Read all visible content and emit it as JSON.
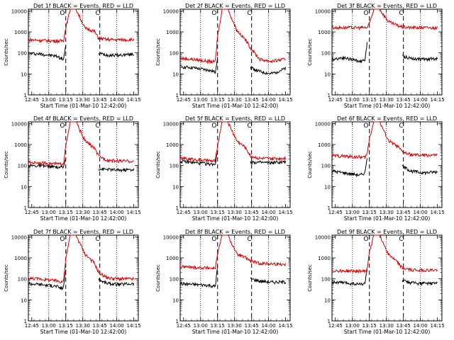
{
  "figure": {
    "xlabel": "Start Time (01-Mar-10 12:42:00)",
    "ylabel": "Counts/sec",
    "event_color": "#000000",
    "lld_color": "#d40000",
    "x_tick_labels": [
      "12:45",
      "13:00",
      "13:15",
      "13:30",
      "13:45",
      "14:00",
      "14:15"
    ],
    "y_tick_labels": [
      "1",
      "10",
      "100",
      "1000",
      "10000"
    ],
    "marker_labels": [
      "O",
      "C"
    ]
  },
  "chart_data": [
    {
      "type": "line",
      "title": "Det 1f BLACK = Events, RED = LLD",
      "ylim": [
        1,
        12000
      ],
      "yscale": "log",
      "x_minutes": [
        0,
        10,
        25,
        29,
        31,
        33,
        37,
        42,
        50,
        58,
        62,
        70,
        80,
        93
      ],
      "series": [
        {
          "name": "Events",
          "values": [
            95,
            90,
            70,
            55,
            50,
            200,
            null,
            null,
            null,
            null,
            95,
            80,
            78,
            88
          ]
        },
        {
          "name": "LLD",
          "values": [
            420,
            400,
            370,
            370,
            390,
            1500,
            12000,
            12000,
            1500,
            1100,
            500,
            430,
            420,
            430
          ]
        }
      ]
    },
    {
      "type": "line",
      "title": "Det 2f BLACK = Events, RED = LLD",
      "ylim": [
        1,
        12000
      ],
      "yscale": "log",
      "x_minutes": [
        0,
        10,
        25,
        29,
        31,
        33,
        37,
        42,
        50,
        58,
        62,
        70,
        80,
        93
      ],
      "series": [
        {
          "name": "Events",
          "values": [
            22,
            20,
            15,
            13,
            12,
            70,
            null,
            null,
            null,
            null,
            20,
            13,
            10,
            18
          ]
        },
        {
          "name": "LLD",
          "values": [
            55,
            50,
            40,
            38,
            40,
            600,
            12000,
            12000,
            1200,
            400,
            180,
            50,
            40,
            50
          ]
        }
      ]
    },
    {
      "type": "line",
      "title": "Det 3f BLACK = Events, RED = LLD",
      "ylim": [
        1,
        12000
      ],
      "yscale": "log",
      "x_minutes": [
        0,
        10,
        25,
        29,
        31,
        33,
        37,
        42,
        50,
        58,
        62,
        70,
        80,
        93
      ],
      "series": [
        {
          "name": "Events",
          "values": [
            50,
            60,
            40,
            45,
            280,
            null,
            null,
            null,
            null,
            null,
            70,
            55,
            50,
            55
          ]
        },
        {
          "name": "LLD",
          "values": [
            1600,
            1600,
            1600,
            1600,
            1600,
            2500,
            12000,
            12000,
            3000,
            2000,
            1700,
            1600,
            1600,
            1550
          ]
        }
      ]
    },
    {
      "type": "line",
      "title": "Det 4f BLACK = Events, RED = LLD",
      "ylim": [
        1,
        12000
      ],
      "yscale": "log",
      "x_minutes": [
        0,
        10,
        25,
        29,
        31,
        33,
        37,
        42,
        50,
        58,
        62,
        70,
        80,
        93
      ],
      "series": [
        {
          "name": "Events",
          "values": [
            100,
            95,
            85,
            80,
            85,
            250,
            null,
            null,
            null,
            null,
            70,
            65,
            60,
            65
          ]
        },
        {
          "name": "LLD",
          "values": [
            140,
            135,
            120,
            115,
            130,
            800,
            12000,
            12000,
            1500,
            700,
            280,
            180,
            165,
            160
          ]
        }
      ]
    },
    {
      "type": "line",
      "title": "Det 5f BLACK = Events, RED = LLD",
      "ylim": [
        1,
        12000
      ],
      "yscale": "log",
      "x_minutes": [
        0,
        10,
        25,
        29,
        31,
        33,
        37,
        42,
        50,
        58,
        62,
        70,
        80,
        93
      ],
      "series": [
        {
          "name": "Events",
          "values": [
            160,
            140,
            120,
            115,
            120,
            500,
            null,
            null,
            null,
            null,
            150,
            140,
            135,
            150
          ]
        },
        {
          "name": "LLD",
          "values": [
            220,
            200,
            170,
            160,
            170,
            900,
            12000,
            12000,
            1500,
            700,
            280,
            220,
            210,
            230
          ]
        }
      ]
    },
    {
      "type": "line",
      "title": "Det 6f BLACK = Events, RED = LLD",
      "ylim": [
        1,
        12000
      ],
      "yscale": "log",
      "x_minutes": [
        0,
        10,
        25,
        29,
        31,
        33,
        37,
        42,
        50,
        58,
        62,
        70,
        80,
        93
      ],
      "series": [
        {
          "name": "Events",
          "values": [
            55,
            45,
            35,
            45,
            250,
            null,
            null,
            null,
            null,
            null,
            90,
            55,
            45,
            50
          ]
        },
        {
          "name": "LLD",
          "values": [
            300,
            280,
            250,
            240,
            350,
            2000,
            12000,
            12000,
            1500,
            800,
            450,
            320,
            310,
            310
          ]
        }
      ]
    },
    {
      "type": "line",
      "title": "Det 7f BLACK = Events, RED = LLD",
      "ylim": [
        1,
        12000
      ],
      "yscale": "log",
      "x_minutes": [
        0,
        10,
        25,
        29,
        31,
        33,
        37,
        42,
        50,
        58,
        62,
        70,
        80,
        93
      ],
      "series": [
        {
          "name": "Events",
          "values": [
            60,
            55,
            45,
            35,
            40,
            300,
            null,
            null,
            null,
            null,
            90,
            60,
            55,
            60
          ]
        },
        {
          "name": "LLD",
          "values": [
            110,
            100,
            80,
            75,
            80,
            900,
            12000,
            12000,
            1500,
            600,
            200,
            110,
            100,
            100
          ]
        }
      ]
    },
    {
      "type": "line",
      "title": "Det 8f BLACK = Events, RED = LLD",
      "ylim": [
        1,
        12000
      ],
      "yscale": "log",
      "x_minutes": [
        0,
        10,
        25,
        29,
        31,
        33,
        37,
        42,
        50,
        58,
        62,
        70,
        80,
        93
      ],
      "series": [
        {
          "name": "Events",
          "values": [
            60,
            55,
            50,
            45,
            45,
            400,
            null,
            null,
            null,
            null,
            100,
            80,
            70,
            70
          ]
        },
        {
          "name": "LLD",
          "values": [
            380,
            360,
            330,
            320,
            330,
            1500,
            12000,
            12000,
            1500,
            1000,
            700,
            550,
            520,
            500
          ]
        }
      ]
    },
    {
      "type": "line",
      "title": "Det 9f BLACK = Events, RED = LLD",
      "ylim": [
        1,
        12000
      ],
      "yscale": "log",
      "x_minutes": [
        0,
        10,
        25,
        29,
        31,
        33,
        37,
        42,
        50,
        58,
        62,
        70,
        80,
        93
      ],
      "series": [
        {
          "name": "Events",
          "values": [
            70,
            65,
            55,
            60,
            300,
            null,
            null,
            null,
            null,
            null,
            80,
            65,
            60,
            62
          ]
        },
        {
          "name": "LLD",
          "values": [
            250,
            240,
            230,
            230,
            280,
            2000,
            12000,
            12000,
            1500,
            600,
            320,
            270,
            260,
            260
          ]
        }
      ]
    }
  ]
}
